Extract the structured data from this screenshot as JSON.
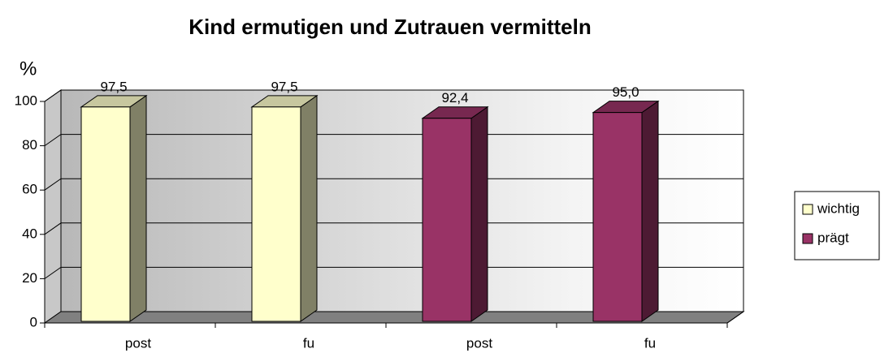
{
  "chart_data": {
    "type": "bar3d",
    "title": "Kind ermutigen und Zutrauen vermitteln",
    "y_label": "%",
    "categories": [
      "post",
      "fu",
      "post",
      "fu"
    ],
    "series": [
      {
        "name": "wichtig",
        "color": "#ffffcc",
        "values": [
          97.5,
          97.5,
          null,
          null
        ],
        "value_labels": [
          "97,5",
          "97,5",
          null,
          null
        ]
      },
      {
        "name": "prägt",
        "color": "#993366",
        "values": [
          null,
          null,
          92.4,
          95.0
        ],
        "value_labels": [
          null,
          null,
          "92,4",
          "95,0"
        ]
      }
    ],
    "ylim": [
      0,
      100
    ],
    "yticks": [
      0,
      20,
      40,
      60,
      80,
      100
    ],
    "grid": true,
    "legend": "right"
  }
}
